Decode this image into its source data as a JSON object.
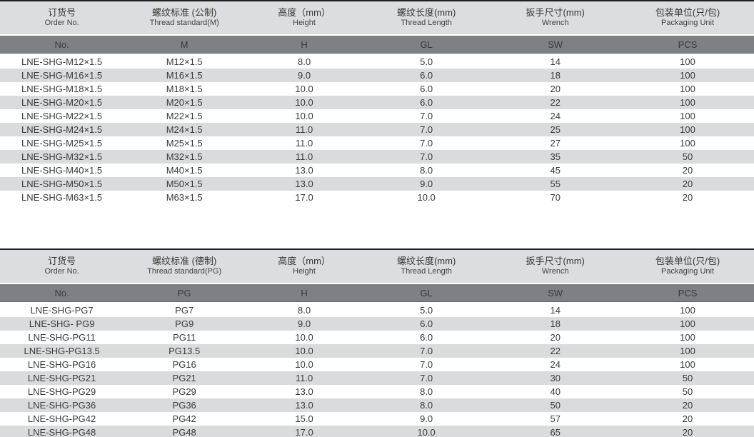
{
  "colors": {
    "topline": "#1f1f1f",
    "header_band_bg": "#dcdde0",
    "code_band_bg": "#7d8185",
    "code_band_text": "#ffffff",
    "row_stripe_bg": "#d9dbdd",
    "body_text": "#3a3a3a"
  },
  "tables": [
    {
      "name": "metric-thread-table",
      "columns": [
        {
          "key": "order-no",
          "zh": "订货号",
          "en": "Order No.",
          "code": "No."
        },
        {
          "key": "thread-standard",
          "zh": "螺纹标准 (公制)",
          "en": "Thread standard(M)",
          "code": "M"
        },
        {
          "key": "height",
          "zh": "高度（mm）",
          "en": "Height",
          "code": "H"
        },
        {
          "key": "thread-length",
          "zh": "螺纹长度(mm)",
          "en": "Thread Length",
          "code": "GL"
        },
        {
          "key": "wrench",
          "zh": "扳手尺寸(mm)",
          "en": "Wrench",
          "code": "SW"
        },
        {
          "key": "packaging",
          "zh": "包装单位(只/包)",
          "en": "Packaging Unit",
          "code": "PCS"
        }
      ],
      "rows": [
        [
          "LNE-SHG-M12×1.5",
          "M12×1.5",
          "8.0",
          "5.0",
          "14",
          "100"
        ],
        [
          "LNE-SHG-M16×1.5",
          "M16×1.5",
          "9.0",
          "6.0",
          "18",
          "100"
        ],
        [
          "LNE-SHG-M18×1.5",
          "M18×1.5",
          "10.0",
          "6.0",
          "20",
          "100"
        ],
        [
          "LNE-SHG-M20×1.5",
          "M20×1.5",
          "10.0",
          "6.0",
          "22",
          "100"
        ],
        [
          "LNE-SHG-M22×1.5",
          "M22×1.5",
          "10.0",
          "7.0",
          "24",
          "100"
        ],
        [
          "LNE-SHG-M24×1.5",
          "M24×1.5",
          "11.0",
          "7.0",
          "25",
          "100"
        ],
        [
          "LNE-SHG-M25×1.5",
          "M25×1.5",
          "11.0",
          "7.0",
          "27",
          "100"
        ],
        [
          "LNE-SHG-M32×1.5",
          "M32×1.5",
          "11.0",
          "7.0",
          "35",
          "50"
        ],
        [
          "LNE-SHG-M40×1.5",
          "M40×1.5",
          "13.0",
          "8.0",
          "45",
          "20"
        ],
        [
          "LNE-SHG-M50×1.5",
          "M50×1.5",
          "13.0",
          "9.0",
          "55",
          "20"
        ],
        [
          "LNE-SHG-M63×1.5",
          "M63×1.5",
          "17.0",
          "10.0",
          "70",
          "20"
        ]
      ]
    },
    {
      "name": "pg-thread-table",
      "columns": [
        {
          "key": "order-no",
          "zh": "订货号",
          "en": "Order No.",
          "code": "No."
        },
        {
          "key": "thread-standard",
          "zh": "螺纹标准 (德制)",
          "en": "Thread standard(PG)",
          "code": "PG"
        },
        {
          "key": "height",
          "zh": "高度（mm）",
          "en": "Height",
          "code": "H"
        },
        {
          "key": "thread-length",
          "zh": "螺纹长度(mm)",
          "en": "Thread Length",
          "code": "GL"
        },
        {
          "key": "wrench",
          "zh": "扳手尺寸(mm)",
          "en": "Wrench",
          "code": "SW"
        },
        {
          "key": "packaging",
          "zh": "包装单位(只/包)",
          "en": "Packaging Unit",
          "code": "PCS"
        }
      ],
      "rows": [
        [
          "LNE-SHG-PG7",
          "PG7",
          "8.0",
          "5.0",
          "14",
          "100"
        ],
        [
          "LNE-SHG- PG9",
          "PG9",
          "9.0",
          "6.0",
          "18",
          "100"
        ],
        [
          "LNE-SHG-PG11",
          "PG11",
          "10.0",
          "6.0",
          "20",
          "100"
        ],
        [
          "LNE-SHG-PG13.5",
          "PG13.5",
          "10.0",
          "7.0",
          "22",
          "100"
        ],
        [
          "LNE-SHG-PG16",
          "PG16",
          "10.0",
          "7.0",
          "24",
          "100"
        ],
        [
          "LNE-SHG-PG21",
          "PG21",
          "11.0",
          "7.0",
          "30",
          "50"
        ],
        [
          "LNE-SHG-PG29",
          "PG29",
          "13.0",
          "8.0",
          "40",
          "50"
        ],
        [
          "LNE-SHG-PG36",
          "PG36",
          "13.0",
          "8.0",
          "50",
          "20"
        ],
        [
          "LNE-SHG-PG42",
          "PG42",
          "15.0",
          "9.0",
          "57",
          "20"
        ],
        [
          "LNE-SHG-PG48",
          "PG48",
          "17.0",
          "10.0",
          "65",
          "20"
        ]
      ]
    }
  ]
}
